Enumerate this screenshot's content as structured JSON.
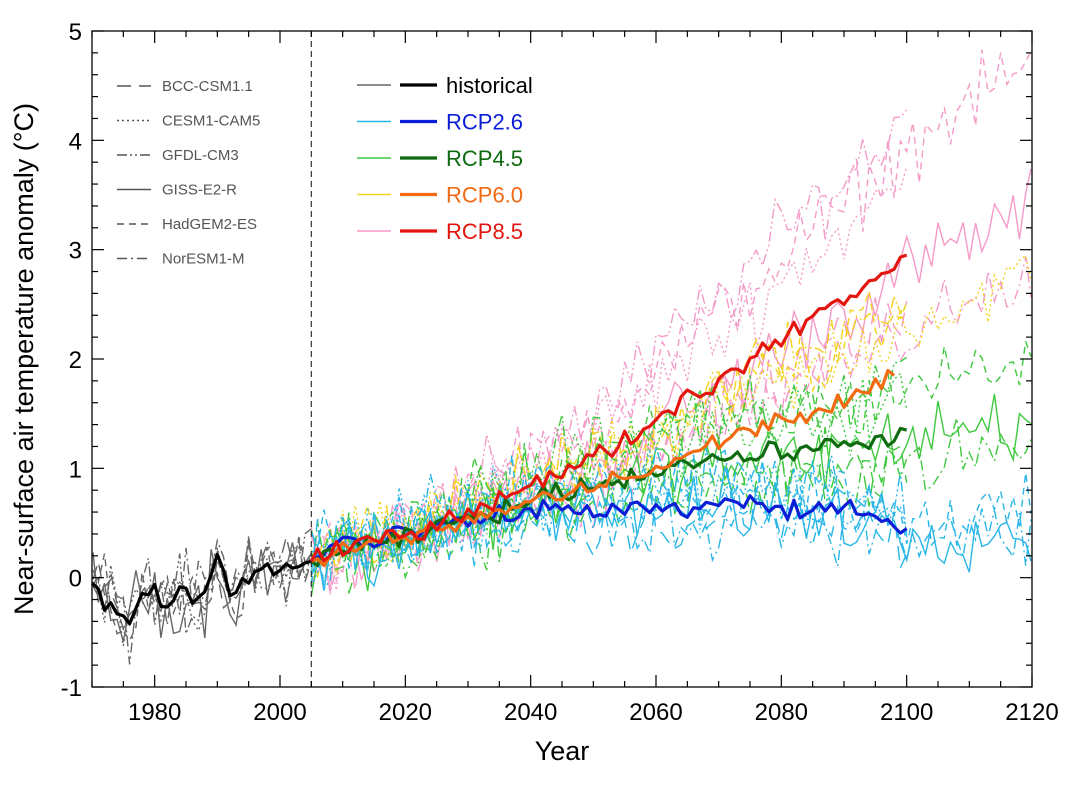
{
  "chart_data": {
    "type": "line",
    "xlabel": "Year",
    "ylabel": "Near-surface air temperature anomaly (°C)",
    "xlim": [
      1970,
      2120
    ],
    "ylim": [
      -1,
      5
    ],
    "x_ticks": [
      1980,
      2000,
      2020,
      2040,
      2060,
      2080,
      2100,
      2120
    ],
    "y_ticks": [
      -1,
      0,
      1,
      2,
      3,
      4,
      5
    ],
    "reference_line_x": 2005,
    "grid": false,
    "legend_models": {
      "placement": "top-left",
      "items": [
        {
          "label": "BCC-CSM1.1",
          "dash": "14,8"
        },
        {
          "label": "CESM1-CAM5",
          "dash": "2,3"
        },
        {
          "label": "GFDL-CM3",
          "dash": "10,3,2,3,2,3"
        },
        {
          "label": "GISS-E2-R",
          "dash": ""
        },
        {
          "label": "HadGEM2-ES",
          "dash": "7,5"
        },
        {
          "label": "NorESM1-M",
          "dash": "10,4,2,4"
        }
      ]
    },
    "legend_scenarios": {
      "placement": "top-left",
      "items": [
        {
          "label": "historical",
          "thin_color": "#666666",
          "thick_color": "#000000",
          "text_color": "#000000"
        },
        {
          "label": "RCP2.6",
          "thin_color": "#29b6e8",
          "thick_color": "#0b1ed6",
          "text_color": "#0b1ed6"
        },
        {
          "label": "RCP4.5",
          "thin_color": "#3ec93e",
          "thick_color": "#0f6b0f",
          "text_color": "#0f6b0f"
        },
        {
          "label": "RCP6.0",
          "thin_color": "#f2d21c",
          "thick_color": "#f26a12",
          "text_color": "#f26a12"
        },
        {
          "label": "RCP8.5",
          "thin_color": "#f59ac8",
          "thick_color": "#e3160f",
          "text_color": "#e3160f"
        }
      ]
    },
    "mean_series": [
      {
        "scenario": "historical",
        "color": "#000000",
        "x": [
          1970,
          1972,
          1974,
          1976,
          1978,
          1980,
          1982,
          1984,
          1986,
          1988,
          1990,
          1991,
          1992,
          1994,
          1996,
          1998,
          2000,
          2002,
          2004,
          2005
        ],
        "y": [
          -0.05,
          -0.25,
          -0.3,
          -0.45,
          -0.15,
          -0.1,
          -0.3,
          -0.1,
          -0.2,
          -0.15,
          0.2,
          0.05,
          -0.2,
          0.0,
          0.0,
          0.1,
          0.05,
          0.15,
          0.1,
          0.15
        ]
      },
      {
        "scenario": "RCP2.6",
        "color": "#0b1ed6",
        "x": [
          2005,
          2010,
          2015,
          2020,
          2025,
          2030,
          2035,
          2040,
          2045,
          2050,
          2055,
          2060,
          2065,
          2070,
          2075,
          2080,
          2085,
          2090,
          2095,
          2100
        ],
        "y": [
          0.15,
          0.35,
          0.3,
          0.4,
          0.45,
          0.5,
          0.55,
          0.6,
          0.65,
          0.6,
          0.62,
          0.65,
          0.6,
          0.65,
          0.7,
          0.6,
          0.65,
          0.6,
          0.55,
          0.45
        ]
      },
      {
        "scenario": "RCP4.5",
        "color": "#0f6b0f",
        "x": [
          2005,
          2010,
          2015,
          2020,
          2025,
          2030,
          2035,
          2040,
          2045,
          2050,
          2055,
          2060,
          2065,
          2070,
          2075,
          2080,
          2085,
          2090,
          2095,
          2100
        ],
        "y": [
          0.15,
          0.25,
          0.3,
          0.35,
          0.45,
          0.55,
          0.6,
          0.7,
          0.8,
          0.85,
          0.9,
          1.0,
          1.05,
          1.1,
          1.1,
          1.15,
          1.2,
          1.2,
          1.25,
          1.35
        ]
      },
      {
        "scenario": "RCP6.0",
        "color": "#f26a12",
        "x": [
          2005,
          2010,
          2015,
          2020,
          2025,
          2030,
          2035,
          2040,
          2045,
          2050,
          2055,
          2060,
          2065,
          2070,
          2075,
          2080,
          2085,
          2090,
          2095,
          2098
        ],
        "y": [
          0.15,
          0.25,
          0.3,
          0.35,
          0.45,
          0.5,
          0.6,
          0.7,
          0.75,
          0.85,
          0.9,
          1.0,
          1.1,
          1.25,
          1.35,
          1.45,
          1.5,
          1.6,
          1.75,
          1.85
        ]
      },
      {
        "scenario": "RCP8.5",
        "color": "#e3160f",
        "x": [
          2005,
          2010,
          2015,
          2020,
          2025,
          2030,
          2035,
          2040,
          2045,
          2050,
          2055,
          2060,
          2065,
          2070,
          2075,
          2080,
          2085,
          2090,
          2095,
          2100
        ],
        "y": [
          0.15,
          0.25,
          0.35,
          0.4,
          0.5,
          0.6,
          0.75,
          0.85,
          0.95,
          1.1,
          1.25,
          1.45,
          1.65,
          1.8,
          2.0,
          2.2,
          2.4,
          2.55,
          2.75,
          2.95
        ]
      }
    ]
  }
}
